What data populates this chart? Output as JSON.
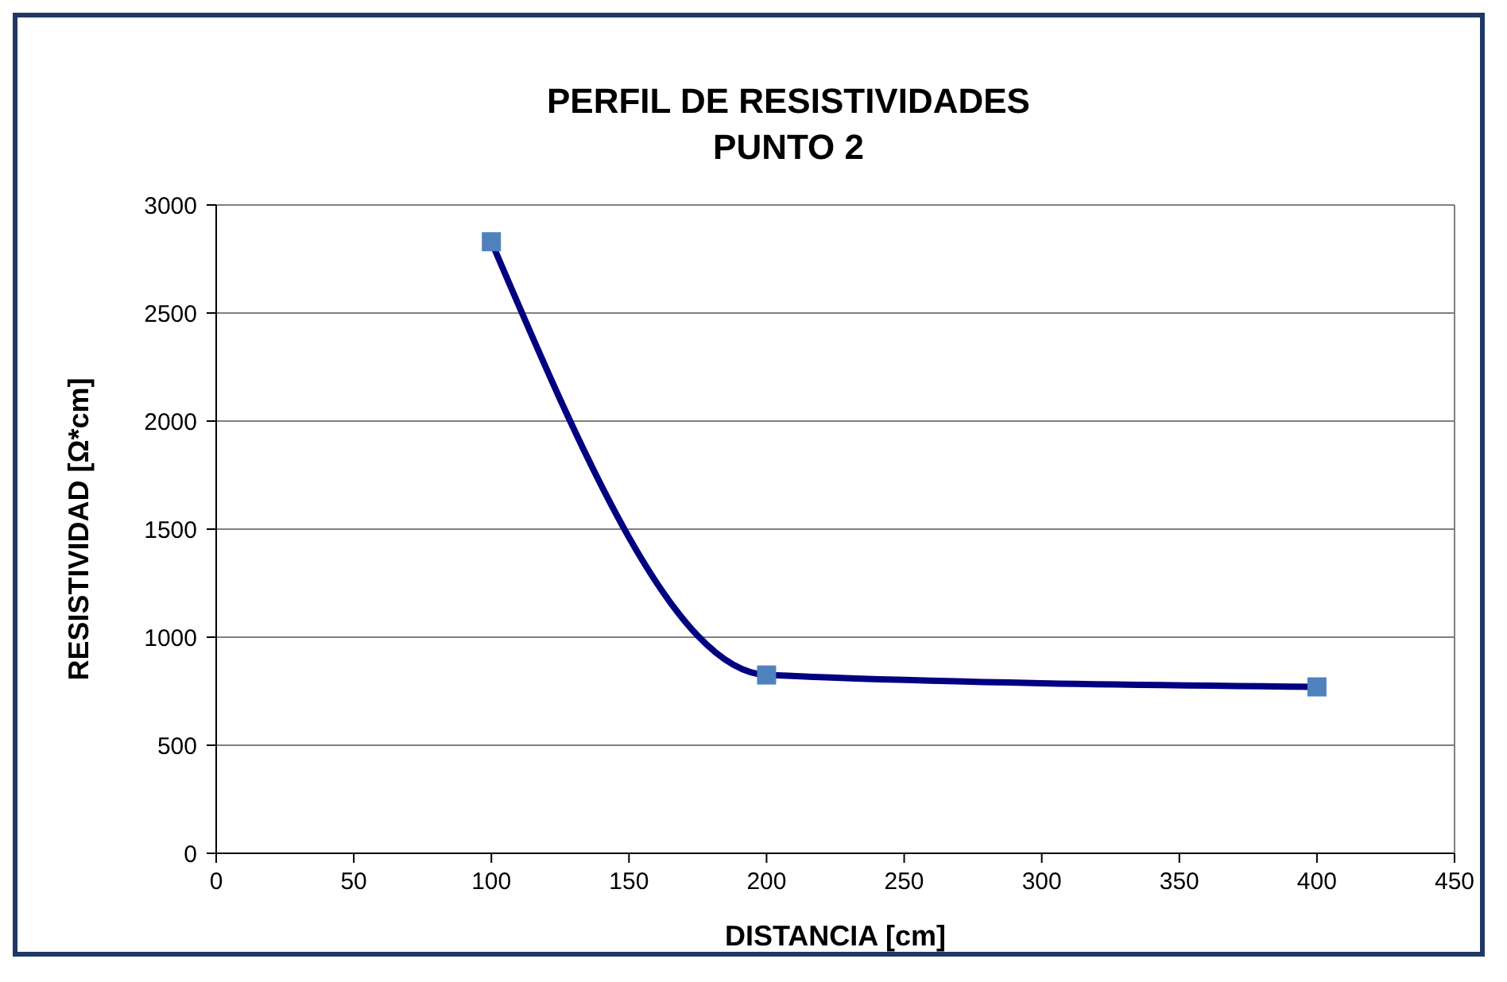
{
  "chart_data": {
    "type": "line",
    "title": "PERFIL DE RESISTIVIDADES\nPUNTO 2",
    "xlabel": "DISTANCIA [cm]",
    "ylabel": "RESISTIVIDAD [Ω*cm]",
    "x": [
      100,
      200,
      400
    ],
    "series": [
      {
        "color": "#000080",
        "values": [
          2830,
          825,
          770
        ]
      }
    ],
    "marker": "square",
    "line_style": "solid",
    "grid": "y",
    "xlim": [
      0,
      450
    ],
    "xticks": [
      0,
      50,
      100,
      150,
      200,
      250,
      300,
      350,
      400,
      450
    ],
    "ylim": [
      0,
      3000
    ],
    "yticks": [
      0,
      500,
      1000,
      1500,
      2000,
      2500,
      3000
    ]
  }
}
